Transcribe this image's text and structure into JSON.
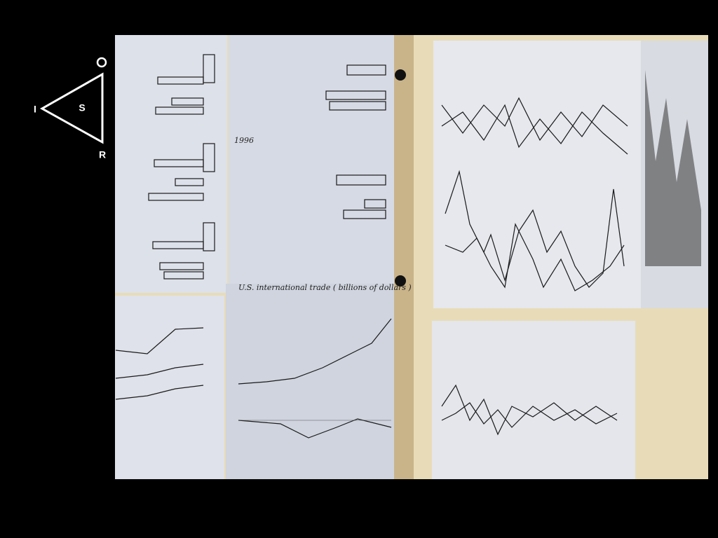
{
  "logo": {
    "top": "O",
    "center": "S",
    "left": "I",
    "bottom": "R"
  },
  "photo": {
    "labels": [
      "1996",
      "U.S. international trade ( billions of dollars )"
    ]
  }
}
